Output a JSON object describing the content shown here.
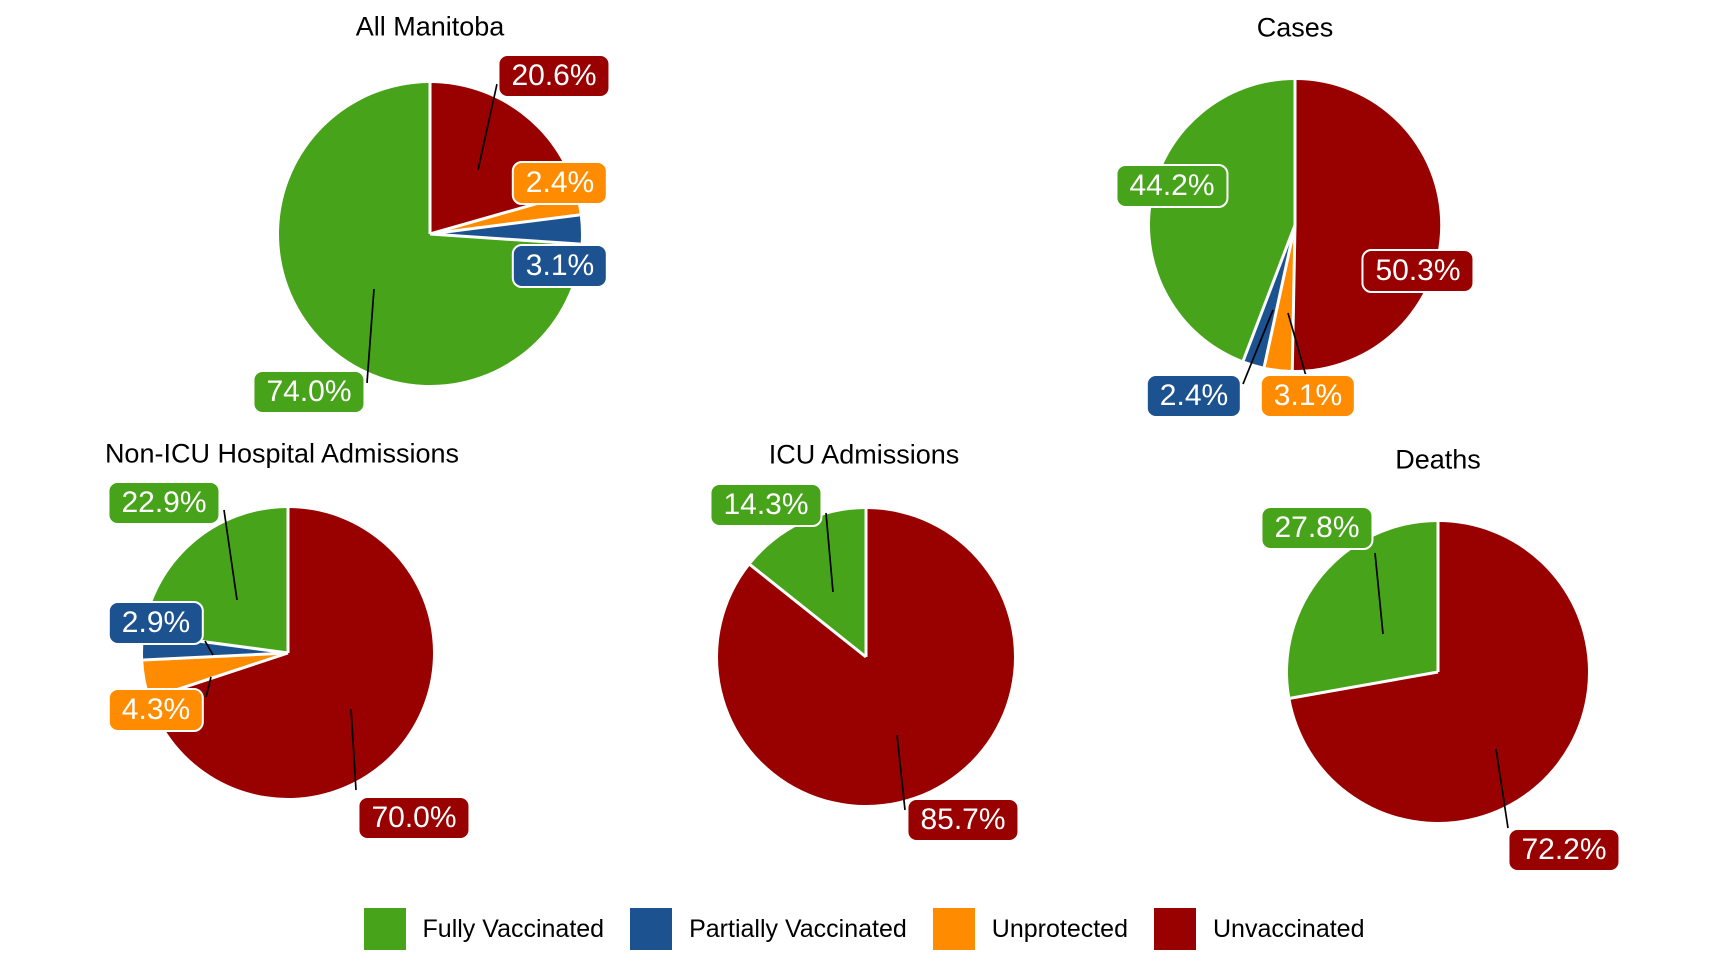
{
  "palette": {
    "fully_vaccinated": "#46A31A",
    "partially_vaccinated": "#1D5291",
    "unprotected": "#FF8C00",
    "unvaccinated": "#990000"
  },
  "legend": {
    "position": "bottom",
    "items": [
      {
        "label": "Fully Vaccinated",
        "color": "#46A31A"
      },
      {
        "label": "Partially Vaccinated",
        "color": "#1D5291"
      },
      {
        "label": "Unprotected",
        "color": "#FF8C00"
      },
      {
        "label": "Unvaccinated",
        "color": "#990000"
      }
    ]
  },
  "chart_data": [
    {
      "type": "pie",
      "title": "All Manitoba",
      "start_angle_deg": 0,
      "direction": "clockwise",
      "slices": [
        {
          "category": "Unvaccinated",
          "value": 20.6,
          "label": "20.6%",
          "color": "#990000"
        },
        {
          "category": "Unprotected",
          "value": 2.4,
          "label": "2.4%",
          "color": "#FF8C00"
        },
        {
          "category": "Partially Vaccinated",
          "value": 3.1,
          "label": "3.1%",
          "color": "#1D5291"
        },
        {
          "category": "Fully Vaccinated",
          "value": 74.0,
          "label": "74.0%",
          "color": "#46A31A"
        }
      ]
    },
    {
      "type": "pie",
      "title": "Cases",
      "start_angle_deg": 0,
      "direction": "clockwise",
      "slices": [
        {
          "category": "Unvaccinated",
          "value": 50.3,
          "label": "50.3%",
          "color": "#990000"
        },
        {
          "category": "Unprotected",
          "value": 3.1,
          "label": "3.1%",
          "color": "#FF8C00"
        },
        {
          "category": "Partially Vaccinated",
          "value": 2.4,
          "label": "2.4%",
          "color": "#1D5291"
        },
        {
          "category": "Fully Vaccinated",
          "value": 44.2,
          "label": "44.2%",
          "color": "#46A31A"
        }
      ]
    },
    {
      "type": "pie",
      "title": "Non-ICU Hospital Admissions",
      "start_angle_deg": 0,
      "direction": "clockwise",
      "slices": [
        {
          "category": "Unvaccinated",
          "value": 70.0,
          "label": "70.0%",
          "color": "#990000"
        },
        {
          "category": "Unprotected",
          "value": 4.3,
          "label": "4.3%",
          "color": "#FF8C00"
        },
        {
          "category": "Partially Vaccinated",
          "value": 2.9,
          "label": "2.9%",
          "color": "#1D5291"
        },
        {
          "category": "Fully Vaccinated",
          "value": 22.9,
          "label": "22.9%",
          "color": "#46A31A"
        }
      ]
    },
    {
      "type": "pie",
      "title": "ICU Admissions",
      "start_angle_deg": 0,
      "direction": "clockwise",
      "slices": [
        {
          "category": "Unvaccinated",
          "value": 85.7,
          "label": "85.7%",
          "color": "#990000"
        },
        {
          "category": "Fully Vaccinated",
          "value": 14.3,
          "label": "14.3%",
          "color": "#46A31A"
        }
      ]
    },
    {
      "type": "pie",
      "title": "Deaths",
      "start_angle_deg": 0,
      "direction": "clockwise",
      "slices": [
        {
          "category": "Unvaccinated",
          "value": 72.2,
          "label": "72.2%",
          "color": "#990000"
        },
        {
          "category": "Fully Vaccinated",
          "value": 27.8,
          "label": "27.8%",
          "color": "#46A31A"
        }
      ]
    }
  ]
}
